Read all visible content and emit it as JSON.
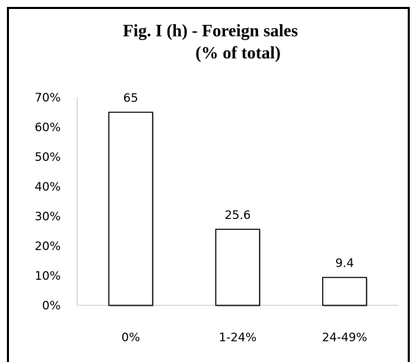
{
  "chart_data": {
    "type": "bar",
    "title": "Fig. I (h) - Foreign sales",
    "subtitle": "(% of total)",
    "categories": [
      "0%",
      "1-24%",
      "24-49%"
    ],
    "values": [
      65,
      25.6,
      9.4
    ],
    "color": "#ffffff",
    "ylim": [
      0,
      70
    ],
    "yticks": [
      {
        "value": 0,
        "label": "0%"
      },
      {
        "value": 10,
        "label": "10%"
      },
      {
        "value": 20,
        "label": "20%"
      },
      {
        "value": 30,
        "label": "30%"
      },
      {
        "value": 40,
        "label": "40%"
      },
      {
        "value": 50,
        "label": "50%"
      },
      {
        "value": 60,
        "label": "60%"
      },
      {
        "value": 70,
        "label": "70%"
      }
    ],
    "grid": false
  }
}
